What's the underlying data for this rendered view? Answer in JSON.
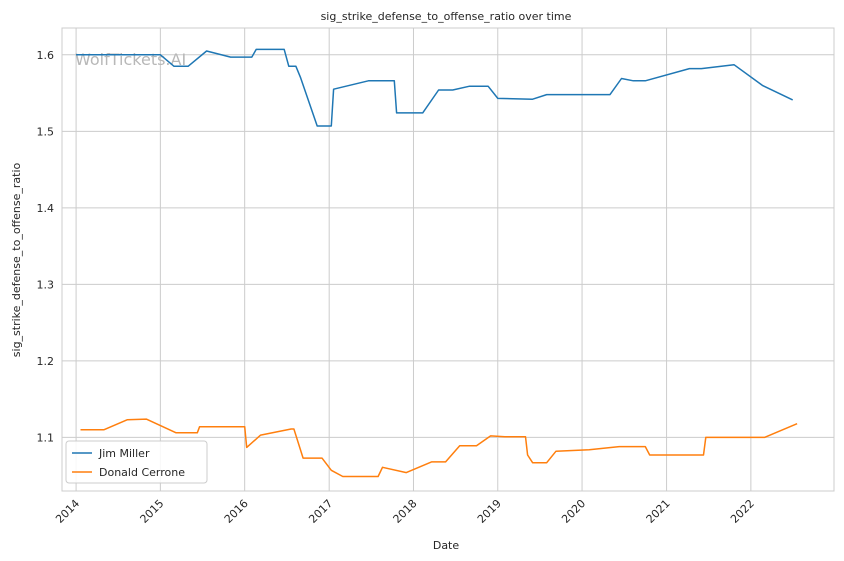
{
  "chart_data": {
    "type": "line",
    "title": "sig_strike_defense_to_offense_ratio over time",
    "xlabel": "Date",
    "ylabel": "sig_strike_defense_to_offense_ratio",
    "watermark": "WolfTickets.AI",
    "x_ticks": [
      "2014",
      "2015",
      "2016",
      "2017",
      "2018",
      "2019",
      "2020",
      "2021",
      "2022"
    ],
    "y_ticks": [
      "1.1",
      "1.2",
      "1.3",
      "1.4",
      "1.5",
      "1.6"
    ],
    "xlim": [
      "2013-11-01",
      "2022-12-27"
    ],
    "ylim": [
      1.03,
      1.635
    ],
    "grid": true,
    "legend_position": "lower-left",
    "series": [
      {
        "name": "Jim Miller",
        "color": "#1f77b4",
        "points": [
          [
            "2014-01-01",
            1.6
          ],
          [
            "2014-04-01",
            1.6
          ],
          [
            "2015-01-01",
            1.6
          ],
          [
            "2015-03-01",
            1.585
          ],
          [
            "2015-05-01",
            1.585
          ],
          [
            "2015-07-20",
            1.605
          ],
          [
            "2015-11-01",
            1.597
          ],
          [
            "2016-02-01",
            1.597
          ],
          [
            "2016-02-20",
            1.607
          ],
          [
            "2016-06-20",
            1.607
          ],
          [
            "2016-07-10",
            1.585
          ],
          [
            "2016-08-10",
            1.585
          ],
          [
            "2016-08-30",
            1.57
          ],
          [
            "2016-11-10",
            1.507
          ],
          [
            "2017-01-10",
            1.507
          ],
          [
            "2017-01-20",
            1.555
          ],
          [
            "2017-06-20",
            1.566
          ],
          [
            "2017-10-10",
            1.566
          ],
          [
            "2017-10-20",
            1.524
          ],
          [
            "2018-02-10",
            1.524
          ],
          [
            "2018-04-20",
            1.554
          ],
          [
            "2018-06-20",
            1.554
          ],
          [
            "2018-09-01",
            1.559
          ],
          [
            "2018-11-20",
            1.559
          ],
          [
            "2019-01-01",
            1.543
          ],
          [
            "2019-06-01",
            1.542
          ],
          [
            "2019-08-01",
            1.548
          ],
          [
            "2020-01-01",
            1.548
          ],
          [
            "2020-05-01",
            1.548
          ],
          [
            "2020-06-20",
            1.569
          ],
          [
            "2020-08-10",
            1.566
          ],
          [
            "2020-10-01",
            1.566
          ],
          [
            "2021-04-10",
            1.582
          ],
          [
            "2021-06-01",
            1.582
          ],
          [
            "2021-10-20",
            1.587
          ],
          [
            "2022-02-20",
            1.56
          ],
          [
            "2022-07-01",
            1.541
          ]
        ]
      },
      {
        "name": "Donald Cerrone",
        "color": "#ff7f0e",
        "points": [
          [
            "2014-01-20",
            1.11
          ],
          [
            "2014-05-01",
            1.11
          ],
          [
            "2014-08-10",
            1.123
          ],
          [
            "2014-11-01",
            1.124
          ],
          [
            "2015-03-10",
            1.106
          ],
          [
            "2015-06-10",
            1.106
          ],
          [
            "2015-06-20",
            1.114
          ],
          [
            "2016-01-01",
            1.114
          ],
          [
            "2016-01-10",
            1.087
          ],
          [
            "2016-03-10",
            1.103
          ],
          [
            "2016-07-20",
            1.111
          ],
          [
            "2016-08-01",
            1.111
          ],
          [
            "2016-09-10",
            1.073
          ],
          [
            "2016-12-01",
            1.073
          ],
          [
            "2017-01-10",
            1.057
          ],
          [
            "2017-03-01",
            1.049
          ],
          [
            "2017-08-01",
            1.049
          ],
          [
            "2017-08-20",
            1.061
          ],
          [
            "2017-12-01",
            1.054
          ],
          [
            "2018-03-20",
            1.068
          ],
          [
            "2018-05-20",
            1.068
          ],
          [
            "2018-07-20",
            1.089
          ],
          [
            "2018-10-01",
            1.089
          ],
          [
            "2018-12-01",
            1.102
          ],
          [
            "2019-02-01",
            1.101
          ],
          [
            "2019-05-01",
            1.101
          ],
          [
            "2019-05-10",
            1.077
          ],
          [
            "2019-06-01",
            1.067
          ],
          [
            "2019-08-01",
            1.067
          ],
          [
            "2019-09-10",
            1.082
          ],
          [
            "2020-02-01",
            1.084
          ],
          [
            "2020-06-10",
            1.088
          ],
          [
            "2020-10-01",
            1.088
          ],
          [
            "2020-10-20",
            1.077
          ],
          [
            "2021-06-10",
            1.077
          ],
          [
            "2021-06-20",
            1.1
          ],
          [
            "2022-03-01",
            1.1
          ],
          [
            "2022-07-20",
            1.118
          ]
        ]
      }
    ]
  }
}
